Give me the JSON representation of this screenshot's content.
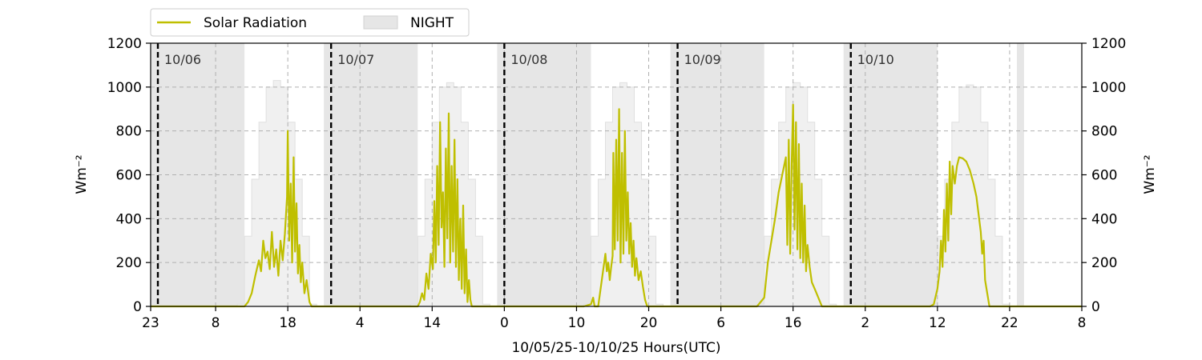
{
  "chart_data": {
    "type": "line",
    "xlabel": "10/05/25-10/10/25  Hours(UTC)",
    "ylabel_left": "Wm⁻²",
    "ylabel_right": "Wm⁻²",
    "ylim": [
      0,
      1200
    ],
    "xlim_hours": [
      0,
      129
    ],
    "y_ticks": [
      0,
      200,
      400,
      600,
      800,
      1000,
      1200
    ],
    "x_ticks": [
      {
        "hour": 0,
        "label": "23"
      },
      {
        "hour": 9,
        "label": "8"
      },
      {
        "hour": 19,
        "label": "18"
      },
      {
        "hour": 29,
        "label": "4"
      },
      {
        "hour": 39,
        "label": "14"
      },
      {
        "hour": 49,
        "label": "0"
      },
      {
        "hour": 59,
        "label": "10"
      },
      {
        "hour": 69,
        "label": "20"
      },
      {
        "hour": 79,
        "label": "6"
      },
      {
        "hour": 89,
        "label": "16"
      },
      {
        "hour": 99,
        "label": "2"
      },
      {
        "hour": 109,
        "label": "12"
      },
      {
        "hour": 119,
        "label": "22"
      },
      {
        "hour": 129,
        "label": "8"
      }
    ],
    "grid": true,
    "legend_position": "top-left, above plot",
    "legend": [
      {
        "name": "Solar Radiation",
        "kind": "line",
        "color": "#bfbf00"
      },
      {
        "name": "NIGHT",
        "kind": "patch",
        "color": "#e6e6e6"
      }
    ],
    "day_markers": [
      {
        "hour": 1,
        "label": "10/06"
      },
      {
        "hour": 25,
        "label": "10/07"
      },
      {
        "hour": 49,
        "label": "10/08"
      },
      {
        "hour": 73,
        "label": "10/09"
      },
      {
        "hour": 97,
        "label": "10/10"
      }
    ],
    "night_bands": [
      [
        0,
        13
      ],
      [
        24,
        37
      ],
      [
        48,
        61
      ],
      [
        72,
        85
      ],
      [
        96,
        109
      ],
      [
        120,
        121
      ]
    ],
    "clear_sky_steps": [
      {
        "hour": 12,
        "value": 10
      },
      {
        "hour": 13,
        "value": 320
      },
      {
        "hour": 14,
        "value": 580
      },
      {
        "hour": 15,
        "value": 840
      },
      {
        "hour": 16,
        "value": 1000
      },
      {
        "hour": 17,
        "value": 1030
      },
      {
        "hour": 18,
        "value": 1000
      },
      {
        "hour": 19,
        "value": 840
      },
      {
        "hour": 20,
        "value": 580
      },
      {
        "hour": 21,
        "value": 320
      },
      {
        "hour": 22,
        "value": 10
      },
      {
        "hour": 36,
        "value": 10
      },
      {
        "hour": 37,
        "value": 320
      },
      {
        "hour": 38,
        "value": 580
      },
      {
        "hour": 39,
        "value": 840
      },
      {
        "hour": 40,
        "value": 1000
      },
      {
        "hour": 41,
        "value": 1020
      },
      {
        "hour": 42,
        "value": 1000
      },
      {
        "hour": 43,
        "value": 840
      },
      {
        "hour": 44,
        "value": 580
      },
      {
        "hour": 45,
        "value": 320
      },
      {
        "hour": 46,
        "value": 10
      },
      {
        "hour": 60,
        "value": 10
      },
      {
        "hour": 61,
        "value": 320
      },
      {
        "hour": 62,
        "value": 580
      },
      {
        "hour": 63,
        "value": 840
      },
      {
        "hour": 64,
        "value": 1000
      },
      {
        "hour": 65,
        "value": 1020
      },
      {
        "hour": 66,
        "value": 1000
      },
      {
        "hour": 67,
        "value": 840
      },
      {
        "hour": 68,
        "value": 580
      },
      {
        "hour": 69,
        "value": 320
      },
      {
        "hour": 70,
        "value": 10
      },
      {
        "hour": 84,
        "value": 10
      },
      {
        "hour": 85,
        "value": 320
      },
      {
        "hour": 86,
        "value": 580
      },
      {
        "hour": 87,
        "value": 840
      },
      {
        "hour": 88,
        "value": 1000
      },
      {
        "hour": 89,
        "value": 1020
      },
      {
        "hour": 90,
        "value": 1000
      },
      {
        "hour": 91,
        "value": 840
      },
      {
        "hour": 92,
        "value": 580
      },
      {
        "hour": 93,
        "value": 320
      },
      {
        "hour": 94,
        "value": 10
      },
      {
        "hour": 108,
        "value": 10
      },
      {
        "hour": 109,
        "value": 320
      },
      {
        "hour": 110,
        "value": 580
      },
      {
        "hour": 111,
        "value": 840
      },
      {
        "hour": 112,
        "value": 1000
      },
      {
        "hour": 113,
        "value": 1010
      },
      {
        "hour": 114,
        "value": 1000
      },
      {
        "hour": 115,
        "value": 840
      },
      {
        "hour": 116,
        "value": 580
      },
      {
        "hour": 117,
        "value": 320
      },
      {
        "hour": 118,
        "value": 10
      }
    ],
    "series": [
      {
        "name": "Solar Radiation",
        "color": "#bfbf00",
        "points": [
          [
            0,
            0
          ],
          [
            13,
            0
          ],
          [
            13.5,
            20
          ],
          [
            14,
            60
          ],
          [
            14.5,
            140
          ],
          [
            15,
            210
          ],
          [
            15.3,
            160
          ],
          [
            15.6,
            300
          ],
          [
            15.9,
            220
          ],
          [
            16.2,
            250
          ],
          [
            16.5,
            170
          ],
          [
            16.8,
            340
          ],
          [
            17.1,
            180
          ],
          [
            17.4,
            260
          ],
          [
            17.7,
            140
          ],
          [
            18,
            300
          ],
          [
            18.3,
            210
          ],
          [
            18.6,
            330
          ],
          [
            18.9,
            500
          ],
          [
            19,
            800
          ],
          [
            19.2,
            300
          ],
          [
            19.4,
            560
          ],
          [
            19.6,
            200
          ],
          [
            19.8,
            680
          ],
          [
            20,
            250
          ],
          [
            20.2,
            470
          ],
          [
            20.4,
            150
          ],
          [
            20.6,
            280
          ],
          [
            20.8,
            110
          ],
          [
            21,
            200
          ],
          [
            21.3,
            60
          ],
          [
            21.6,
            120
          ],
          [
            22,
            20
          ],
          [
            22.3,
            0
          ],
          [
            37,
            0
          ],
          [
            37.3,
            20
          ],
          [
            37.6,
            60
          ],
          [
            37.9,
            30
          ],
          [
            38.2,
            150
          ],
          [
            38.5,
            80
          ],
          [
            38.8,
            240
          ],
          [
            39.1,
            170
          ],
          [
            39.3,
            480
          ],
          [
            39.5,
            200
          ],
          [
            39.7,
            640
          ],
          [
            39.9,
            280
          ],
          [
            40.1,
            840
          ],
          [
            40.3,
            360
          ],
          [
            40.5,
            520
          ],
          [
            40.7,
            180
          ],
          [
            40.9,
            720
          ],
          [
            41.1,
            310
          ],
          [
            41.3,
            880
          ],
          [
            41.5,
            200
          ],
          [
            41.7,
            640
          ],
          [
            41.9,
            250
          ],
          [
            42.1,
            760
          ],
          [
            42.3,
            180
          ],
          [
            42.5,
            580
          ],
          [
            42.7,
            120
          ],
          [
            42.9,
            400
          ],
          [
            43.1,
            80
          ],
          [
            43.3,
            460
          ],
          [
            43.5,
            60
          ],
          [
            43.7,
            260
          ],
          [
            43.9,
            20
          ],
          [
            44.1,
            120
          ],
          [
            44.3,
            30
          ],
          [
            44.5,
            0
          ],
          [
            60,
            0
          ],
          [
            61,
            10
          ],
          [
            61.3,
            40
          ],
          [
            61.5,
            0
          ],
          [
            62,
            0
          ],
          [
            63,
            240
          ],
          [
            63.2,
            160
          ],
          [
            63.4,
            200
          ],
          [
            63.6,
            120
          ],
          [
            63.8,
            180
          ],
          [
            64,
            230
          ],
          [
            64.1,
            700
          ],
          [
            64.3,
            260
          ],
          [
            64.5,
            760
          ],
          [
            64.7,
            300
          ],
          [
            64.9,
            900
          ],
          [
            65.1,
            200
          ],
          [
            65.3,
            700
          ],
          [
            65.5,
            240
          ],
          [
            65.7,
            800
          ],
          [
            65.9,
            300
          ],
          [
            66.1,
            520
          ],
          [
            66.3,
            240
          ],
          [
            66.5,
            380
          ],
          [
            66.7,
            180
          ],
          [
            66.9,
            300
          ],
          [
            67.1,
            140
          ],
          [
            67.3,
            220
          ],
          [
            67.6,
            120
          ],
          [
            67.9,
            160
          ],
          [
            68.2,
            90
          ],
          [
            68.5,
            30
          ],
          [
            68.8,
            0
          ],
          [
            84,
            0
          ],
          [
            84.5,
            20
          ],
          [
            85,
            40
          ],
          [
            85.5,
            200
          ],
          [
            86,
            300
          ],
          [
            86.5,
            400
          ],
          [
            87,
            520
          ],
          [
            87.5,
            600
          ],
          [
            88,
            680
          ],
          [
            88.2,
            280
          ],
          [
            88.4,
            760
          ],
          [
            88.6,
            240
          ],
          [
            88.8,
            640
          ],
          [
            89,
            920
          ],
          [
            89.2,
            350
          ],
          [
            89.4,
            840
          ],
          [
            89.6,
            260
          ],
          [
            89.8,
            740
          ],
          [
            90,
            220
          ],
          [
            90.2,
            560
          ],
          [
            90.4,
            200
          ],
          [
            90.6,
            460
          ],
          [
            90.8,
            160
          ],
          [
            91,
            280
          ],
          [
            91.3,
            180
          ],
          [
            91.6,
            110
          ],
          [
            92,
            80
          ],
          [
            92.5,
            40
          ],
          [
            93,
            0
          ],
          [
            108,
            0
          ],
          [
            108.5,
            10
          ],
          [
            109,
            80
          ],
          [
            109.3,
            160
          ],
          [
            109.5,
            300
          ],
          [
            109.7,
            180
          ],
          [
            109.9,
            440
          ],
          [
            110.1,
            250
          ],
          [
            110.3,
            560
          ],
          [
            110.5,
            300
          ],
          [
            110.7,
            660
          ],
          [
            110.9,
            420
          ],
          [
            111.1,
            640
          ],
          [
            111.4,
            560
          ],
          [
            111.7,
            640
          ],
          [
            112,
            680
          ],
          [
            112.5,
            675
          ],
          [
            113,
            660
          ],
          [
            113.5,
            620
          ],
          [
            114,
            560
          ],
          [
            114.4,
            500
          ],
          [
            114.7,
            420
          ],
          [
            115,
            340
          ],
          [
            115.2,
            240
          ],
          [
            115.4,
            300
          ],
          [
            115.6,
            120
          ],
          [
            115.8,
            80
          ],
          [
            116,
            40
          ],
          [
            116.2,
            0
          ],
          [
            129,
            0
          ]
        ]
      }
    ]
  }
}
